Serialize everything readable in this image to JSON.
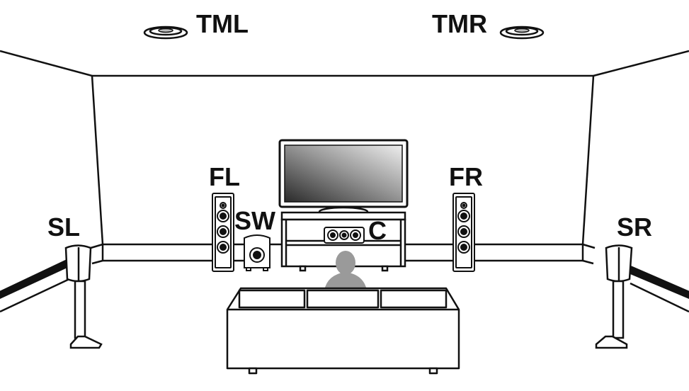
{
  "labels": {
    "tml": "TML",
    "tmr": "TMR",
    "fl": "FL",
    "fr": "FR",
    "sw": "SW",
    "c": "C",
    "sl": "SL",
    "sr": "SR"
  },
  "colors": {
    "line": "#111111",
    "background": "#ffffff",
    "person": "#9a9a9a",
    "tv_dark": "#222222",
    "tv_light": "#e6e6e6"
  }
}
